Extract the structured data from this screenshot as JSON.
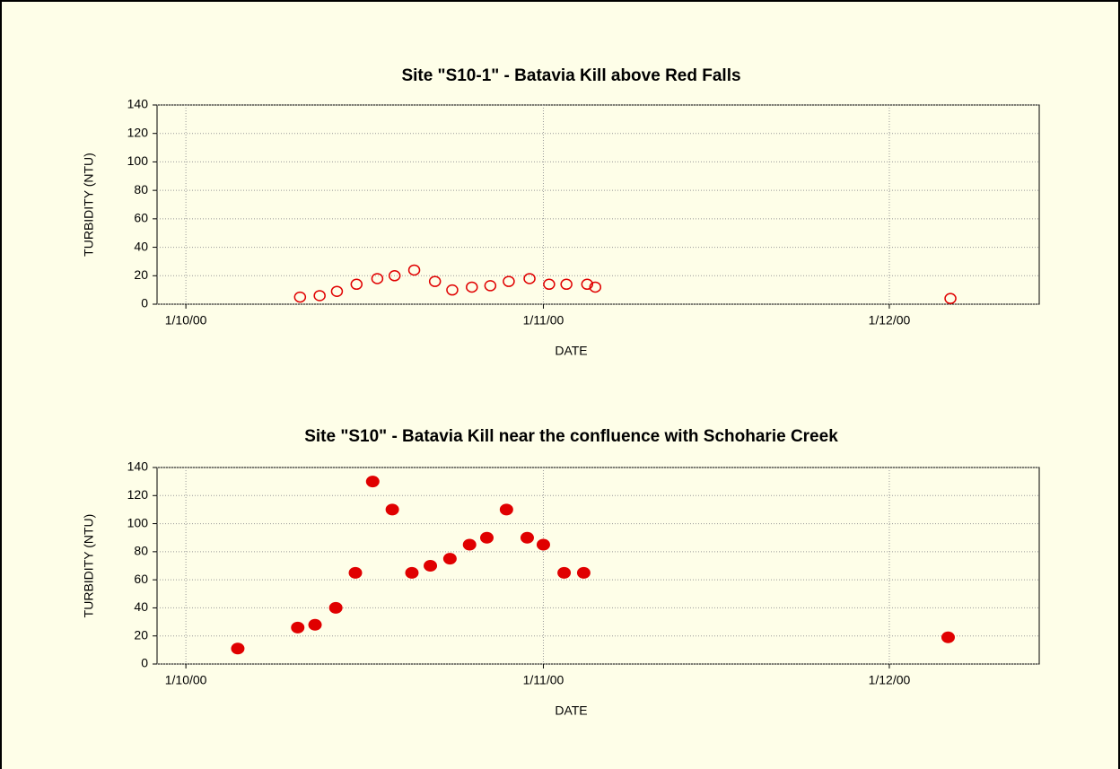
{
  "chart_data": [
    {
      "type": "scatter",
      "title": "Site \"S10-1\" - Batavia Kill above Red Falls",
      "xlabel": "DATE",
      "ylabel": "TURBIDITY (NTU)",
      "marker": "open",
      "color": "#e00000",
      "x": [
        9.9,
        11.6,
        13.1,
        14.8,
        16.6,
        18.1,
        19.8,
        21.6,
        23.1,
        24.8,
        26.4,
        28.0,
        29.8,
        31.5,
        33.0,
        34.8,
        35.5,
        66.3
      ],
      "values": [
        5,
        6,
        9,
        14,
        18,
        20,
        24,
        16,
        10,
        12,
        13,
        16,
        18,
        14,
        14,
        14,
        12,
        4
      ],
      "xlim": [
        -2.5,
        74
      ],
      "xticks": [
        {
          "value": 0,
          "label": "1/10/00"
        },
        {
          "value": 31,
          "label": "1/11/00"
        },
        {
          "value": 61,
          "label": "1/12/00"
        }
      ],
      "ylim": [
        0,
        140
      ],
      "yticks": [
        0,
        20,
        40,
        60,
        80,
        100,
        120,
        140
      ],
      "grid": true
    },
    {
      "type": "scatter",
      "title": "Site \"S10\" - Batavia Kill near the confluence with Schoharie Creek",
      "xlabel": "DATE",
      "ylabel": "TURBIDITY (NTU)",
      "marker": "filled",
      "color": "#e00000",
      "x": [
        4.5,
        9.7,
        11.2,
        13.0,
        14.7,
        16.2,
        17.9,
        19.6,
        21.2,
        22.9,
        24.6,
        26.1,
        27.8,
        29.6,
        31.0,
        32.8,
        34.5,
        66.1
      ],
      "values": [
        11,
        26,
        28,
        40,
        65,
        130,
        110,
        65,
        70,
        75,
        85,
        90,
        110,
        90,
        85,
        65,
        65,
        19
      ],
      "xlim": [
        -2.5,
        74
      ],
      "xticks": [
        {
          "value": 0,
          "label": "1/10/00"
        },
        {
          "value": 31,
          "label": "1/11/00"
        },
        {
          "value": 61,
          "label": "1/12/00"
        }
      ],
      "ylim": [
        0,
        140
      ],
      "yticks": [
        0,
        20,
        40,
        60,
        80,
        100,
        120,
        140
      ],
      "grid": true
    }
  ]
}
